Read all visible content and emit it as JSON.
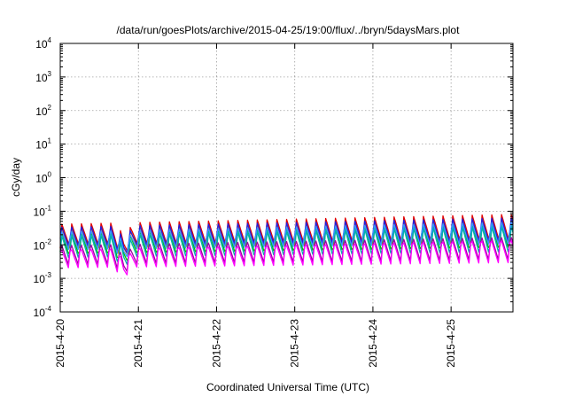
{
  "chart_data": {
    "type": "line",
    "title": "/data/run/goesPlots/archive/2015-04-25/19:00/flux/../bryn/5daysMars.plot",
    "xlabel": "Coordinated Universal Time (UTC)",
    "ylabel": "cGy/day",
    "y_scale": "log",
    "ylim": [
      0.0001,
      10000
    ],
    "y_ticks": [
      {
        "base": "10",
        "exp": "4"
      },
      {
        "base": "10",
        "exp": "3"
      },
      {
        "base": "10",
        "exp": "2"
      },
      {
        "base": "10",
        "exp": "1"
      },
      {
        "base": "10",
        "exp": "0"
      },
      {
        "base": "10",
        "exp": "-1"
      },
      {
        "base": "10",
        "exp": "-2"
      },
      {
        "base": "10",
        "exp": "-3"
      },
      {
        "base": "10",
        "exp": "-4"
      }
    ],
    "x_ticks": [
      "2015-4-20",
      "2015-4-21",
      "2015-4-22",
      "2015-4-23",
      "2015-4-24",
      "2015-4-25"
    ],
    "xlim": [
      "2015-04-20 00:00",
      "2015-04-25 19:00"
    ],
    "grid": true,
    "cycle_hours": 3,
    "series": [
      {
        "color": "#e00000",
        "peak": [
          0.045,
          0.09
        ],
        "trough": [
          0.008,
          0.011
        ]
      },
      {
        "color": "#ff6600",
        "peak": [
          0.035,
          0.07
        ],
        "trough": [
          0.0065,
          0.009
        ]
      },
      {
        "color": "#00c000",
        "peak": [
          0.028,
          0.055
        ],
        "trough": [
          0.004,
          0.006
        ]
      },
      {
        "color": "#00b0b0",
        "peak": [
          0.022,
          0.045
        ],
        "trough": [
          0.0032,
          0.0045
        ]
      },
      {
        "color": "#2020e0",
        "peak": [
          0.04,
          0.08
        ],
        "trough": [
          0.0075,
          0.01
        ]
      },
      {
        "color": "#3399ff",
        "peak": [
          0.03,
          0.06
        ],
        "trough": [
          0.006,
          0.0085
        ]
      },
      {
        "color": "#a000a0",
        "peak": [
          0.012,
          0.022
        ],
        "trough": [
          0.0022,
          0.003
        ]
      },
      {
        "color": "#ff00ff",
        "peak": [
          0.009,
          0.018
        ],
        "trough": [
          0.0018,
          0.0025
        ]
      }
    ],
    "dip": {
      "center": "2015-04-20 19:30",
      "min_ratio": 0.45
    }
  }
}
